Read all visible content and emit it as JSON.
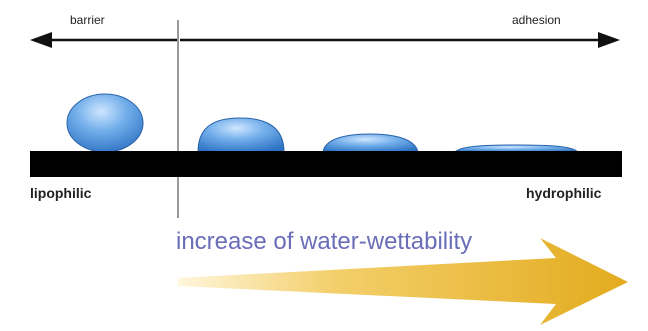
{
  "labels": {
    "barrier": "barrier",
    "adhesion": "adhesion",
    "lipophilic": "lipophilic",
    "hydrophilic": "hydrophilic",
    "increase": "increase of water-wettability"
  },
  "colors": {
    "droplet": "#4a8fd8",
    "droplet_highlight": "#cfe6ff",
    "surface": "#000000",
    "arrow_yellow": "#e8b428",
    "text_purple": "#6a6db8",
    "divider": "#9a9a9a"
  }
}
